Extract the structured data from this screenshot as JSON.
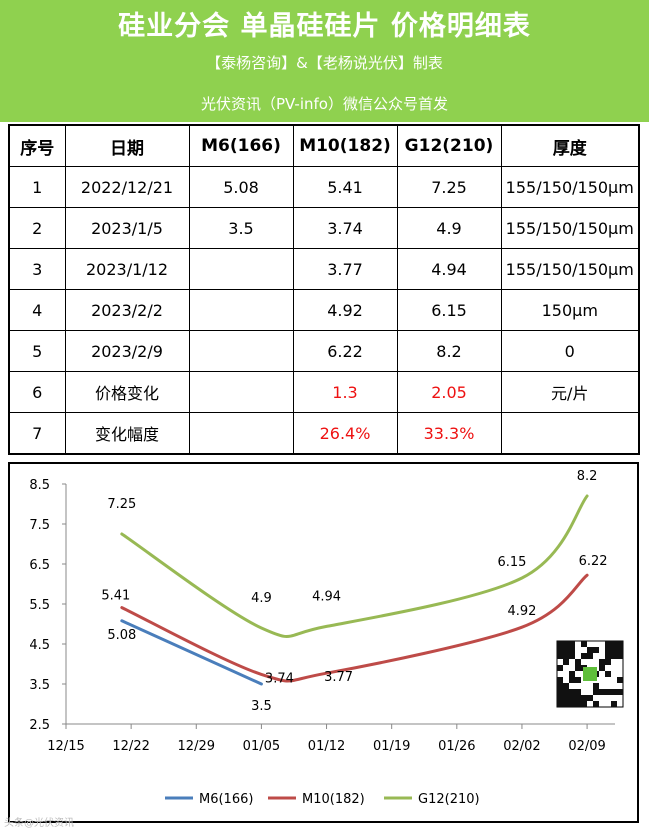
{
  "header": {
    "title": "硅业分会 单晶硅硅片 价格明细表",
    "credit": "【泰杨咨询】&【老杨说光伏】制表",
    "source": "光伏资讯（PV-info）微信公众号首发"
  },
  "table": {
    "headers": [
      "序号",
      "日期",
      "M6(166)",
      "M10(182)",
      "G12(210)",
      "厚度"
    ],
    "rows": [
      [
        "1",
        "2022/12/21",
        "5.08",
        "5.41",
        "7.25",
        "155/150/150μm"
      ],
      [
        "2",
        "2023/1/5",
        "3.5",
        "3.74",
        "4.9",
        "155/150/150μm"
      ],
      [
        "3",
        "2023/1/12",
        "",
        "3.77",
        "4.94",
        "155/150/150μm"
      ],
      [
        "4",
        "2023/2/2",
        "",
        "4.92",
        "6.15",
        "150μm"
      ],
      [
        "5",
        "2023/2/9",
        "",
        "6.22",
        "8.2",
        "0"
      ],
      [
        "6",
        "价格变化",
        "",
        "1.3",
        "2.05",
        "元/片"
      ],
      [
        "7",
        "变化幅度",
        "",
        "26.4%",
        "33.3%",
        ""
      ]
    ]
  },
  "chart_data": {
    "type": "line",
    "x_tick_labels": [
      "12/15",
      "12/22",
      "12/29",
      "01/05",
      "01/12",
      "01/19",
      "01/26",
      "02/02",
      "02/09"
    ],
    "y_tick_labels": [
      "8.5",
      "7.5",
      "6.5",
      "5.5",
      "4.5",
      "3.5",
      "2.5"
    ],
    "ylim": [
      2.5,
      8.5
    ],
    "xlim": [
      "2022-12-15",
      "2023-02-12"
    ],
    "legend_position": "bottom",
    "series": [
      {
        "name": "M6(166)",
        "color": "#4a7ebb",
        "points": [
          {
            "x": "2022-12-21",
            "y": 5.08,
            "label": "5.08"
          },
          {
            "x": "2023-01-05",
            "y": 3.5,
            "label": "3.5"
          }
        ]
      },
      {
        "name": "M10(182)",
        "color": "#be4b48",
        "points": [
          {
            "x": "2022-12-21",
            "y": 5.41,
            "label": "5.41"
          },
          {
            "x": "2023-01-05",
            "y": 3.74,
            "label": "3.74"
          },
          {
            "x": "2023-01-12",
            "y": 3.77,
            "label": "3.77"
          },
          {
            "x": "2023-02-02",
            "y": 4.92,
            "label": "4.92"
          },
          {
            "x": "2023-02-09",
            "y": 6.22,
            "label": "6.22"
          }
        ]
      },
      {
        "name": "G12(210)",
        "color": "#98b954",
        "points": [
          {
            "x": "2022-12-21",
            "y": 7.25,
            "label": "7.25"
          },
          {
            "x": "2023-01-05",
            "y": 4.9,
            "label": "4.9"
          },
          {
            "x": "2023-01-12",
            "y": 4.94,
            "label": "4.94"
          },
          {
            "x": "2023-02-02",
            "y": 6.15,
            "label": "6.15"
          },
          {
            "x": "2023-02-09",
            "y": 8.2,
            "label": "8.2"
          }
        ]
      }
    ]
  },
  "qr_icon": "qr-code-icon",
  "watermark": "头条@光伏资讯"
}
